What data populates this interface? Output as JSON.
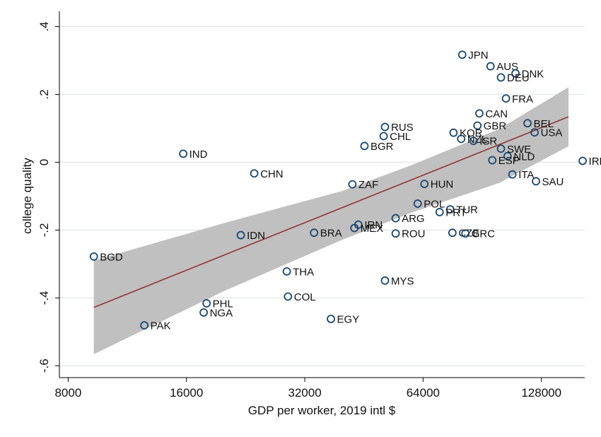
{
  "chart_data": {
    "type": "scatter",
    "title": "",
    "xlabel": "GDP per worker, 2019 intl $",
    "ylabel": "college quality",
    "x_scale": "log2",
    "xlim": [
      7600,
      165000
    ],
    "ylim": [
      -0.635,
      0.445
    ],
    "x_ticks": [
      8000,
      16000,
      32000,
      64000,
      128000
    ],
    "x_tick_labels": [
      "8000",
      "16000",
      "32000",
      "64000",
      "128000"
    ],
    "y_ticks": [
      -0.6,
      -0.4,
      -0.2,
      0,
      0.2,
      0.4
    ],
    "y_tick_labels": [
      "-.6",
      "-.4",
      "-.2",
      "0",
      ".2",
      ".4"
    ],
    "grid": "horizontal",
    "colors": {
      "plot_background": "#ffffff",
      "page_background": "#ffffff",
      "grid": "#e6e9ed",
      "marker_stroke": "#1a476f",
      "fit_line": "#90353b",
      "confidence_band": "#c0c0c0"
    },
    "points": [
      {
        "label": "JPN",
        "x": 80500,
        "y": 0.317
      },
      {
        "label": "AUS",
        "x": 95000,
        "y": 0.283
      },
      {
        "label": "DNK",
        "x": 110000,
        "y": 0.262
      },
      {
        "label": "DEU",
        "x": 101000,
        "y": 0.25
      },
      {
        "label": "FRA",
        "x": 104000,
        "y": 0.188
      },
      {
        "label": "CAN",
        "x": 89000,
        "y": 0.144
      },
      {
        "label": "BEL",
        "x": 118000,
        "y": 0.115
      },
      {
        "label": "GBR",
        "x": 88000,
        "y": 0.108
      },
      {
        "label": "USA",
        "x": 123000,
        "y": 0.088
      },
      {
        "label": "KOR",
        "x": 76500,
        "y": 0.087
      },
      {
        "label": "NZL",
        "x": 80000,
        "y": 0.069
      },
      {
        "label": "ISR",
        "x": 86000,
        "y": 0.063
      },
      {
        "label": "SWE",
        "x": 101000,
        "y": 0.04
      },
      {
        "label": "NLD",
        "x": 105000,
        "y": 0.018
      },
      {
        "label": "ESP",
        "x": 96000,
        "y": 0.006
      },
      {
        "label": "IRL",
        "x": 163000,
        "y": 0.004
      },
      {
        "label": "ITA",
        "x": 108000,
        "y": -0.036
      },
      {
        "label": "SAU",
        "x": 124000,
        "y": -0.056
      },
      {
        "label": "RUS",
        "x": 51200,
        "y": 0.104
      },
      {
        "label": "CHL",
        "x": 50800,
        "y": 0.077
      },
      {
        "label": "BGR",
        "x": 45400,
        "y": 0.048
      },
      {
        "label": "IND",
        "x": 15700,
        "y": 0.025
      },
      {
        "label": "CHN",
        "x": 23800,
        "y": -0.033
      },
      {
        "label": "ZAF",
        "x": 42300,
        "y": -0.065
      },
      {
        "label": "HUN",
        "x": 64500,
        "y": -0.064
      },
      {
        "label": "POL",
        "x": 62000,
        "y": -0.122
      },
      {
        "label": "TUR",
        "x": 75000,
        "y": -0.139
      },
      {
        "label": "PRT",
        "x": 70500,
        "y": -0.147
      },
      {
        "label": "ARG",
        "x": 54500,
        "y": -0.165
      },
      {
        "label": "IRN",
        "x": 43800,
        "y": -0.184
      },
      {
        "label": "MEX",
        "x": 42800,
        "y": -0.194
      },
      {
        "label": "ROU",
        "x": 54500,
        "y": -0.21
      },
      {
        "label": "CZE",
        "x": 76000,
        "y": -0.208
      },
      {
        "label": "GRC",
        "x": 82000,
        "y": -0.21
      },
      {
        "label": "IDN",
        "x": 22000,
        "y": -0.215
      },
      {
        "label": "BRA",
        "x": 33800,
        "y": -0.208
      },
      {
        "label": "BGD",
        "x": 9300,
        "y": -0.278
      },
      {
        "label": "THA",
        "x": 28800,
        "y": -0.322
      },
      {
        "label": "MYS",
        "x": 51200,
        "y": -0.349
      },
      {
        "label": "COL",
        "x": 29000,
        "y": -0.396
      },
      {
        "label": "PHL",
        "x": 18000,
        "y": -0.416
      },
      {
        "label": "NGA",
        "x": 17700,
        "y": -0.443
      },
      {
        "label": "EGY",
        "x": 37300,
        "y": -0.462
      },
      {
        "label": "PAK",
        "x": 12500,
        "y": -0.481
      }
    ],
    "fit_line": {
      "x": [
        9300,
        150000
      ],
      "y": [
        -0.428,
        0.134
      ]
    },
    "confidence_band": {
      "x": [
        9300,
        20000,
        40000,
        60000,
        100000,
        150000
      ],
      "lower": [
        -0.566,
        -0.379,
        -0.228,
        -0.148,
        -0.061,
        0.047
      ],
      "upper": [
        -0.29,
        -0.179,
        -0.084,
        -0.008,
        0.098,
        0.221
      ]
    }
  }
}
